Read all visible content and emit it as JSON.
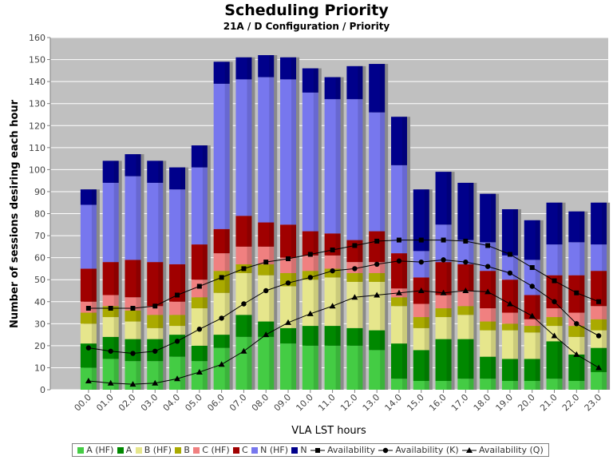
{
  "chart_data": {
    "type": "bar",
    "title": "Scheduling Priority",
    "subtitle": "21A / D Configuration /  Priority",
    "xlabel": "VLA LST hours",
    "ylabel": "Number of sessions desiring each hour",
    "ylim": [
      0,
      160
    ],
    "yticks": [
      0,
      10,
      20,
      30,
      40,
      50,
      60,
      70,
      80,
      90,
      100,
      110,
      120,
      130,
      140,
      150,
      160
    ],
    "grid": true,
    "legend_position": "bottom",
    "categories": [
      "00.0",
      "01.0",
      "02.0",
      "03.0",
      "04.0",
      "05.0",
      "06.0",
      "07.0",
      "08.0",
      "09.0",
      "10.0",
      "11.0",
      "12.0",
      "13.0",
      "14.0",
      "15.0",
      "16.0",
      "17.0",
      "18.0",
      "19.0",
      "20.0",
      "21.0",
      "22.0",
      "23.0"
    ],
    "stacked_series": [
      {
        "name": "A (HF)",
        "color": "#44cc44",
        "values": [
          10,
          14,
          13,
          13,
          15,
          13,
          19,
          24,
          24,
          21,
          20,
          20,
          20,
          18,
          5,
          4,
          4,
          5,
          5,
          4,
          4,
          5,
          4,
          8
        ]
      },
      {
        "name": "A",
        "color": "#008800",
        "values": [
          11,
          10,
          10,
          10,
          10,
          7,
          6,
          10,
          7,
          7,
          9,
          9,
          8,
          9,
          16,
          14,
          19,
          18,
          10,
          10,
          10,
          17,
          12,
          11
        ]
      },
      {
        "name": "B (HF)",
        "color": "#e6e68c",
        "values": [
          9,
          9,
          8,
          5,
          4,
          17,
          19,
          19,
          21,
          19,
          21,
          22,
          21,
          22,
          17,
          10,
          10,
          11,
          12,
          13,
          12,
          7,
          8,
          8
        ]
      },
      {
        "name": "B",
        "color": "#aaaa00",
        "values": [
          5,
          5,
          5,
          6,
          5,
          5,
          10,
          4,
          5,
          6,
          4,
          4,
          4,
          4,
          4,
          5,
          4,
          4,
          4,
          3,
          3,
          4,
          5,
          5
        ]
      },
      {
        "name": "C (HF)",
        "color": "#f08080",
        "values": [
          5,
          5,
          6,
          4,
          6,
          8,
          8,
          8,
          8,
          7,
          7,
          6,
          5,
          5,
          4,
          6,
          6,
          7,
          6,
          5,
          3,
          4,
          6,
          6
        ]
      },
      {
        "name": "C",
        "color": "#a00000",
        "values": [
          15,
          15,
          17,
          20,
          17,
          16,
          11,
          14,
          11,
          15,
          11,
          10,
          10,
          14,
          16,
          12,
          15,
          12,
          17,
          15,
          11,
          15,
          17,
          16
        ]
      },
      {
        "name": "N (HF)",
        "color": "#7777ee",
        "values": [
          29,
          36,
          38,
          36,
          34,
          35,
          66,
          62,
          66,
          66,
          63,
          61,
          64,
          54,
          40,
          12,
          17,
          11,
          13,
          11,
          16,
          14,
          15,
          12
        ]
      },
      {
        "name": "N",
        "color": "#00008b",
        "values": [
          7,
          10,
          10,
          10,
          10,
          10,
          10,
          10,
          10,
          10,
          11,
          10,
          15,
          22,
          22,
          28,
          24,
          26,
          22,
          21,
          18,
          19,
          14,
          19
        ]
      }
    ],
    "line_series": [
      {
        "name": "Availability",
        "marker": "square",
        "values": [
          37,
          37,
          37,
          38,
          43,
          47,
          51,
          55,
          58,
          59.5,
          61.5,
          63.5,
          65.5,
          67.5,
          68,
          68,
          68,
          67.5,
          65.5,
          61.5,
          55.5,
          49.5,
          44,
          40
        ]
      },
      {
        "name": "Availability (K)",
        "marker": "circle",
        "values": [
          19,
          17.5,
          16.5,
          17.5,
          22,
          27.5,
          32.5,
          39,
          45,
          48.5,
          51,
          54,
          55,
          57,
          58.5,
          58,
          59,
          58,
          56,
          53,
          47,
          40,
          30,
          24.5
        ]
      },
      {
        "name": "Availability (Q)",
        "marker": "triangle",
        "values": [
          4,
          3,
          2.5,
          3,
          5,
          8,
          11.5,
          17.5,
          25,
          30.5,
          34.5,
          38,
          42,
          43,
          44,
          45,
          44,
          45,
          44.5,
          39,
          33.5,
          24.5,
          16,
          10
        ]
      }
    ]
  },
  "legend": [
    {
      "label": "A (HF)",
      "kind": "box",
      "color": "#44cc44"
    },
    {
      "label": "A",
      "kind": "box",
      "color": "#008800"
    },
    {
      "label": "B (HF)",
      "kind": "box",
      "color": "#e6e68c"
    },
    {
      "label": "B",
      "kind": "box",
      "color": "#aaaa00"
    },
    {
      "label": "C (HF)",
      "kind": "box",
      "color": "#f08080"
    },
    {
      "label": "C",
      "kind": "box",
      "color": "#a00000"
    },
    {
      "label": "N (HF)",
      "kind": "box",
      "color": "#7777ee"
    },
    {
      "label": "N",
      "kind": "box",
      "color": "#00008b"
    },
    {
      "label": "Availability",
      "kind": "line",
      "marker": "square"
    },
    {
      "label": "Availability (K)",
      "kind": "line",
      "marker": "circle"
    },
    {
      "label": "Availability (Q)",
      "kind": "line",
      "marker": "triangle"
    }
  ],
  "colors": {
    "plot_bg": "#c0c0c0",
    "grid": "#ffffff",
    "line": "#000000"
  }
}
